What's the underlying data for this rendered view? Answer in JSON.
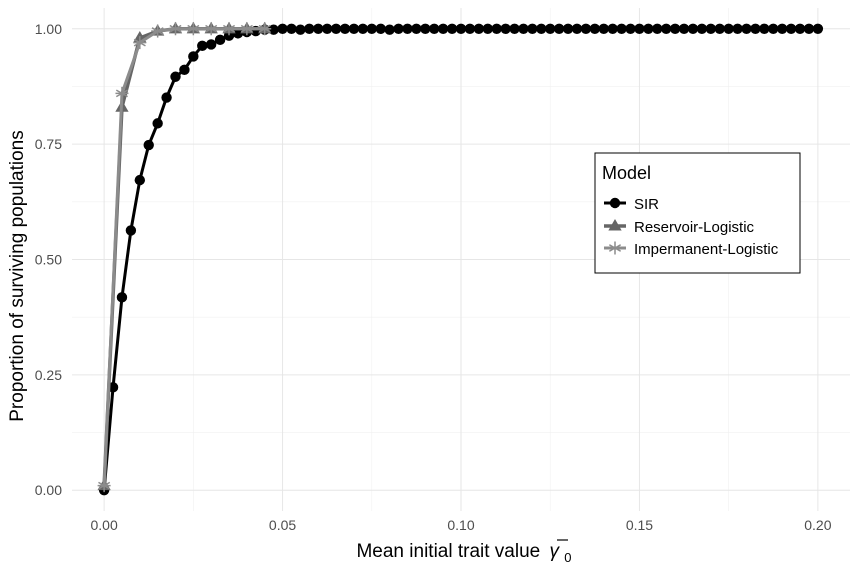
{
  "chart_data": {
    "type": "line",
    "xlabel": "Mean initial trait value",
    "xlabel_symbol": "γ",
    "xlabel_subscript": "0",
    "ylabel": "Proportion of surviving populations",
    "xlim": [
      -0.009,
      0.209
    ],
    "ylim": [
      -0.045,
      1.045
    ],
    "x_ticks": [
      0,
      0.05,
      0.1,
      0.15,
      0.2
    ],
    "x_tick_labels": [
      "0.00",
      "0.05",
      "0.10",
      "0.15",
      "0.20"
    ],
    "y_ticks": [
      0,
      0.25,
      0.5,
      0.75,
      1
    ],
    "y_tick_labels": [
      "0.00",
      "0.25",
      "0.50",
      "0.75",
      "1.00"
    ],
    "grid": true,
    "legend": {
      "title": "Model",
      "position": "right",
      "entries": [
        "SIR",
        "Reservoir-Logistic",
        "Impermanent-Logistic"
      ]
    },
    "series": [
      {
        "name": "SIR",
        "color": "#000000",
        "marker": "circle",
        "x_start": 0,
        "x_step": 0.0025,
        "values": [
          0,
          0.223,
          0.418,
          0.563,
          0.672,
          0.748,
          0.795,
          0.851,
          0.896,
          0.911,
          0.94,
          0.963,
          0.966,
          0.976,
          0.985,
          0.99,
          0.993,
          0.995,
          0.998,
          0.998,
          1,
          1,
          0.998,
          1,
          1,
          1,
          1,
          1,
          1,
          1,
          1,
          1,
          0.998,
          1,
          1,
          1,
          1,
          1,
          1,
          1,
          1,
          1,
          1,
          1,
          1,
          1,
          1,
          1,
          1,
          1,
          1,
          1,
          1,
          1,
          1,
          1,
          1,
          1,
          1,
          1,
          1,
          1,
          1,
          1,
          1,
          1,
          1,
          1,
          1,
          1,
          1,
          1,
          1,
          1,
          1,
          1,
          1,
          1,
          1,
          1,
          1
        ]
      },
      {
        "name": "Reservoir-Logistic",
        "color": "#666666",
        "marker": "triangle",
        "x_start": 0,
        "x_step": 0.005,
        "values": [
          0.01,
          0.83,
          0.98,
          0.995,
          1,
          1,
          1,
          1,
          1,
          1
        ]
      },
      {
        "name": "Impermanent-Logistic",
        "color": "#8c8c8c",
        "marker": "asterisk",
        "x_start": 0,
        "x_step": 0.005,
        "values": [
          0.01,
          0.86,
          0.97,
          0.995,
          1,
          1,
          1,
          1,
          1,
          1
        ]
      }
    ]
  }
}
